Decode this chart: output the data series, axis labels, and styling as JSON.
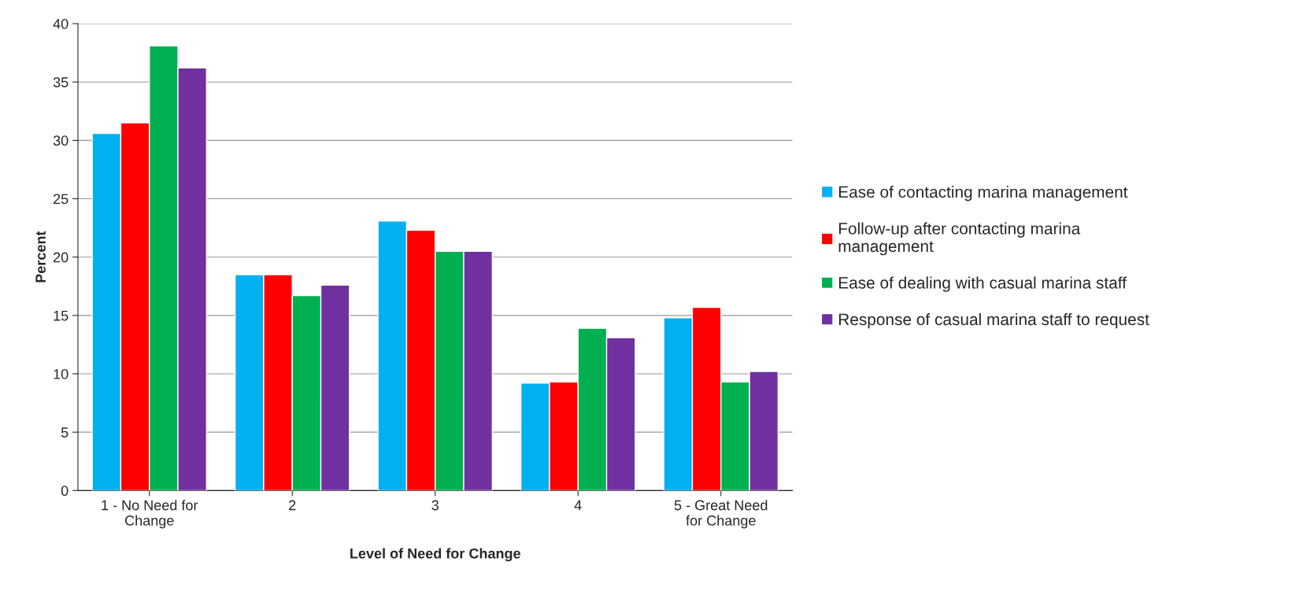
{
  "chart_data": {
    "type": "bar",
    "xlabel": "Level of Need for Change",
    "ylabel": "Percent",
    "categories": [
      "1 - No Need for\nChange",
      "2",
      "3",
      "4",
      "5 - Great Need\nfor Change"
    ],
    "series": [
      {
        "name": "Ease of contacting marina management",
        "color": "#00b0f0",
        "values": [
          30.6,
          18.5,
          23.1,
          9.2,
          14.8
        ]
      },
      {
        "name": "Follow-up after contacting marina\nmanagement",
        "color": "#ff0000",
        "values": [
          31.5,
          18.5,
          22.3,
          9.3,
          15.7
        ]
      },
      {
        "name": "Ease of dealing with casual marina staff",
        "color": "#00b050",
        "values": [
          38.1,
          16.7,
          20.5,
          13.9,
          9.3
        ]
      },
      {
        "name": "Response of casual marina staff to request",
        "color": "#7030a0",
        "values": [
          36.2,
          17.6,
          20.5,
          13.1,
          10.2
        ]
      }
    ],
    "ylim": [
      0,
      40
    ],
    "yticks": [
      0,
      5,
      10,
      15,
      20,
      25,
      30,
      35,
      40
    ],
    "grid": "y",
    "legend": "right"
  }
}
